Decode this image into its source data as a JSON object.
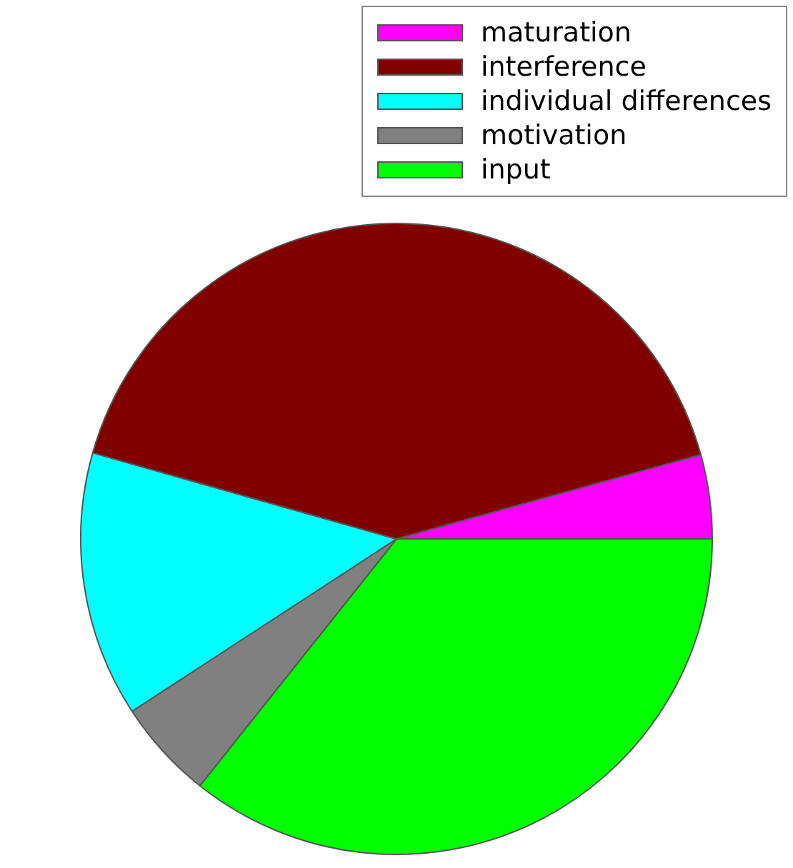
{
  "chart_data": {
    "type": "pie",
    "categories": [
      "maturation",
      "interference",
      "individual differences",
      "motivation",
      "input"
    ],
    "values": [
      4.3,
      41.3,
      13.6,
      5.1,
      35.7
    ],
    "colors": [
      "#ff00ff",
      "#800000",
      "#00ffff",
      "#808080",
      "#00ff00"
    ],
    "legend": "top right"
  }
}
